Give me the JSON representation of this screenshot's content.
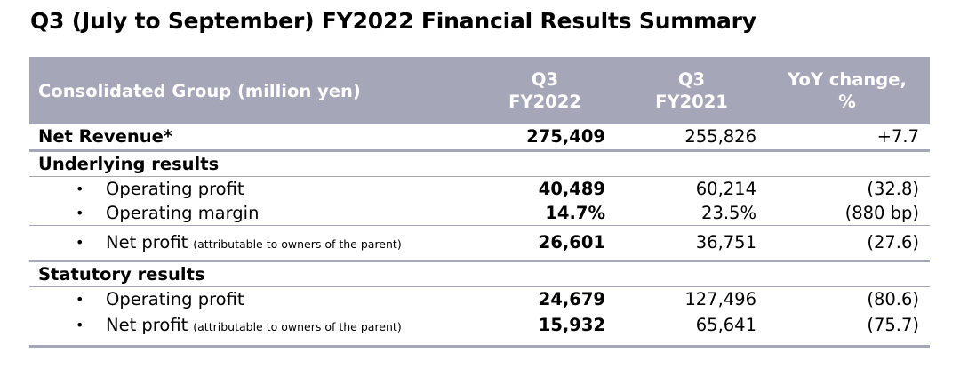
{
  "title": "Q3 (July to September) FY2022 Financial Results Summary",
  "table": {
    "header": {
      "label": "Consolidated Group (million yen)",
      "col1_line1": "Q3",
      "col1_line2": "FY2022",
      "col2_line1": "Q3",
      "col2_line2": "FY2021",
      "col3_line1": "YoY change,",
      "col3_line2": "%"
    },
    "net_revenue": {
      "label": "Net Revenue*",
      "current": "275,409",
      "previous": "255,826",
      "yoy": "+7.7"
    },
    "underlying": {
      "heading": "Underlying results",
      "rows": [
        {
          "bullet": "•",
          "label": "Operating profit",
          "note": "",
          "current": "40,489",
          "previous": "60,214",
          "yoy": "(32.8)"
        },
        {
          "bullet": "•",
          "label": "Operating margin",
          "note": "",
          "current": "14.7%",
          "previous": "23.5%",
          "yoy": "(880 bp)"
        },
        {
          "bullet": "•",
          "label": "Net profit",
          "note": "(attributable to owners of the parent)",
          "current": "26,601",
          "previous": "36,751",
          "yoy": "(27.6)"
        }
      ]
    },
    "statutory": {
      "heading": "Statutory results",
      "rows": [
        {
          "bullet": "•",
          "label": "Operating profit",
          "note": "",
          "current": "24,679",
          "previous": "127,496",
          "yoy": "(80.6)"
        },
        {
          "bullet": "•",
          "label": "Net profit",
          "note": "(attributable to owners of the parent)",
          "current": "15,932",
          "previous": "65,641",
          "yoy": "(75.7)"
        }
      ]
    }
  }
}
